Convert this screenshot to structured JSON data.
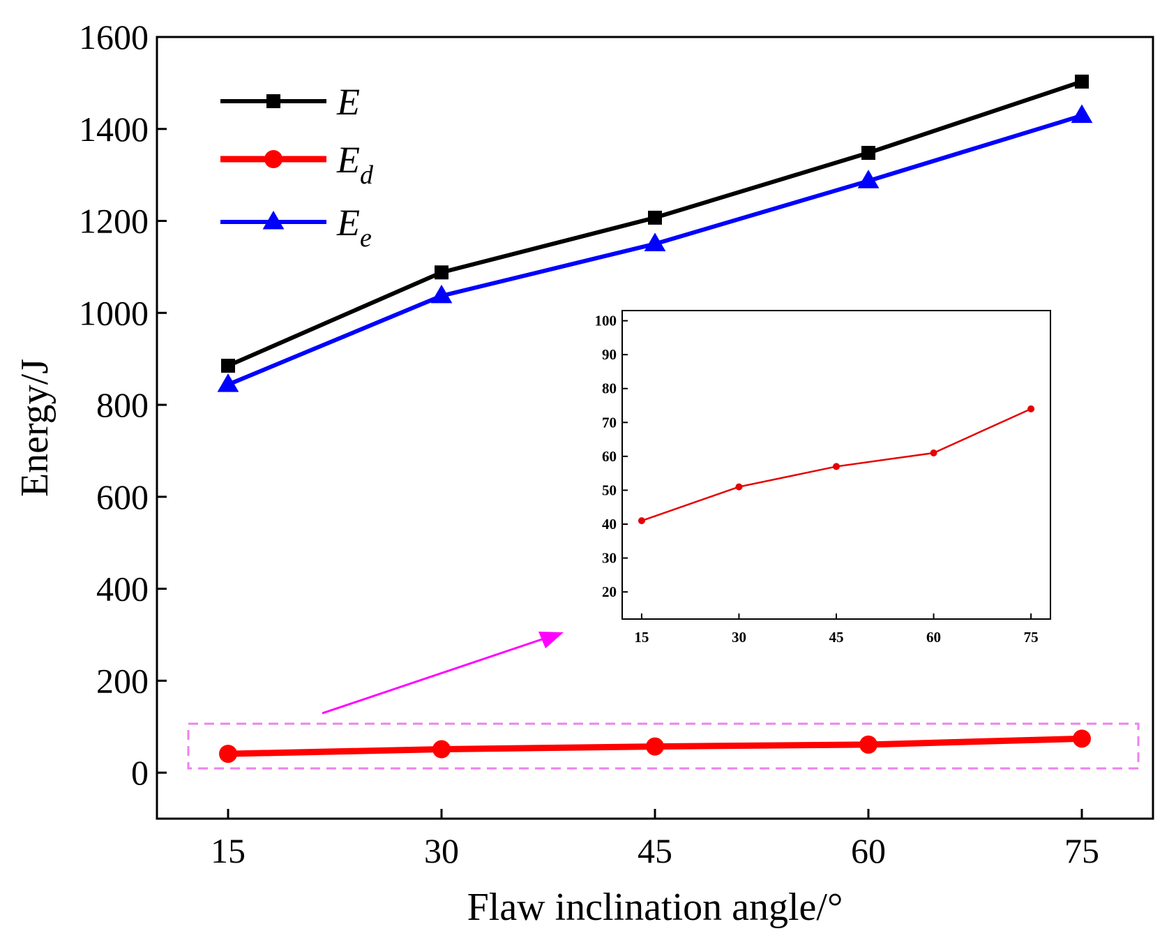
{
  "chart_data": [
    {
      "type": "line",
      "role": "main",
      "xlabel": "Flaw inclination angle/°",
      "ylabel": "Energy/J",
      "x": [
        15,
        30,
        45,
        60,
        75
      ],
      "xlim": [
        10,
        80
      ],
      "ylim": [
        -100,
        1600
      ],
      "xticks": [
        15,
        30,
        45,
        60,
        75
      ],
      "xtick_labels": [
        "15",
        "30",
        "45",
        "60",
        "75"
      ],
      "yticks": [
        0,
        200,
        400,
        600,
        800,
        1000,
        1200,
        1400,
        1600
      ],
      "ytick_labels": [
        "0",
        "200",
        "400",
        "600",
        "800",
        "1000",
        "1200",
        "1400",
        "1600"
      ],
      "legend_position": "top-left",
      "series": [
        {
          "name": "E",
          "symbol": "E",
          "subscript": "",
          "marker": "square",
          "color": "#000000",
          "values": [
            885,
            1088,
            1207,
            1348,
            1503
          ]
        },
        {
          "name": "Ed",
          "symbol": "E",
          "subscript": "d",
          "marker": "circle",
          "color": "#ff0000",
          "values": [
            41,
            51,
            57,
            61,
            74
          ]
        },
        {
          "name": "Ee",
          "symbol": "E",
          "subscript": "e",
          "marker": "triangle",
          "color": "#0000ff",
          "values": [
            844,
            1037,
            1150,
            1287,
            1429
          ]
        }
      ],
      "highlight_color": "#ee82ee",
      "arrow_color": "#ff00ff"
    },
    {
      "type": "line",
      "role": "inset",
      "x": [
        15,
        30,
        45,
        60,
        75
      ],
      "xlim": [
        12,
        78
      ],
      "ylim": [
        12,
        103
      ],
      "xticks": [
        15,
        30,
        45,
        60,
        75
      ],
      "xtick_labels": [
        "15",
        "30",
        "45",
        "60",
        "75"
      ],
      "yticks": [
        20,
        30,
        40,
        50,
        60,
        70,
        80,
        90,
        100
      ],
      "ytick_labels": [
        "20",
        "30",
        "40",
        "50",
        "60",
        "70",
        "80",
        "90",
        "100"
      ],
      "series": [
        {
          "name": "Ed",
          "marker": "circle",
          "color": "#e60000",
          "values": [
            41,
            51,
            57,
            61,
            74
          ]
        }
      ]
    }
  ]
}
